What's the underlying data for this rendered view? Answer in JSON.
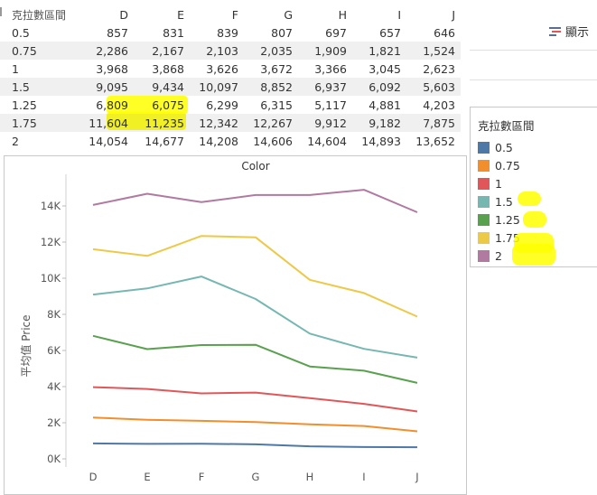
{
  "table": {
    "row_header": "克拉數區間",
    "columns": [
      "D",
      "E",
      "F",
      "G",
      "H",
      "I",
      "J"
    ],
    "rows": [
      {
        "label": "0.5",
        "values": [
          "857",
          "831",
          "839",
          "807",
          "697",
          "657",
          "646"
        ]
      },
      {
        "label": "0.75",
        "values": [
          "2,286",
          "2,167",
          "2,103",
          "2,035",
          "1,909",
          "1,821",
          "1,524"
        ]
      },
      {
        "label": "1",
        "values": [
          "3,968",
          "3,868",
          "3,626",
          "3,672",
          "3,366",
          "3,045",
          "2,623"
        ]
      },
      {
        "label": "1.5",
        "values": [
          "9,095",
          "9,434",
          "10,097",
          "8,852",
          "6,937",
          "6,092",
          "5,603"
        ]
      },
      {
        "label": "1.25",
        "values": [
          "6,809",
          "6,075",
          "6,299",
          "6,315",
          "5,117",
          "4,881",
          "4,203"
        ]
      },
      {
        "label": "1.75",
        "values": [
          "11,604",
          "11,235",
          "12,342",
          "12,267",
          "9,912",
          "9,182",
          "7,875"
        ]
      },
      {
        "label": "2",
        "values": [
          "14,054",
          "14,677",
          "14,208",
          "14,606",
          "14,604",
          "14,893",
          "13,652"
        ]
      }
    ]
  },
  "toolbar": {
    "show_label": "顯示",
    "show_icon": "bars-icon"
  },
  "legend": {
    "title": "克拉數區間",
    "items": [
      {
        "label": "0.5",
        "color": "#4e79a7"
      },
      {
        "label": "0.75",
        "color": "#f28e2b"
      },
      {
        "label": "1",
        "color": "#e15759"
      },
      {
        "label": "1.5",
        "color": "#76b7b2"
      },
      {
        "label": "1.25",
        "color": "#59a14f"
      },
      {
        "label": "1.75",
        "color": "#edc948"
      },
      {
        "label": "2",
        "color": "#b07aa1"
      }
    ]
  },
  "chart_data": {
    "type": "line",
    "title": "Color",
    "xlabel": "",
    "ylabel": "平均值 Price",
    "categories": [
      "D",
      "E",
      "F",
      "G",
      "H",
      "I",
      "J"
    ],
    "ylim": [
      0,
      15000
    ],
    "yticks": [
      0,
      2000,
      4000,
      6000,
      8000,
      10000,
      12000,
      14000
    ],
    "ytick_labels": [
      "0K",
      "2K",
      "4K",
      "6K",
      "8K",
      "10K",
      "12K",
      "14K"
    ],
    "grid": false,
    "series": [
      {
        "name": "0.5",
        "color": "#4e79a7",
        "values": [
          857,
          831,
          839,
          807,
          697,
          657,
          646
        ]
      },
      {
        "name": "0.75",
        "color": "#f28e2b",
        "values": [
          2286,
          2167,
          2103,
          2035,
          1909,
          1821,
          1524
        ]
      },
      {
        "name": "1",
        "color": "#e15759",
        "values": [
          3968,
          3868,
          3626,
          3672,
          3366,
          3045,
          2623
        ]
      },
      {
        "name": "1.5",
        "color": "#76b7b2",
        "values": [
          9095,
          9434,
          10097,
          8852,
          6937,
          6092,
          5603
        ]
      },
      {
        "name": "1.25",
        "color": "#59a14f",
        "values": [
          6809,
          6075,
          6299,
          6315,
          5117,
          4881,
          4203
        ]
      },
      {
        "name": "1.75",
        "color": "#edc948",
        "values": [
          11604,
          11235,
          12342,
          12267,
          9912,
          9182,
          7875
        ]
      },
      {
        "name": "2",
        "color": "#b07aa1",
        "values": [
          14054,
          14677,
          14208,
          14606,
          14604,
          14893,
          13652
        ]
      }
    ]
  }
}
